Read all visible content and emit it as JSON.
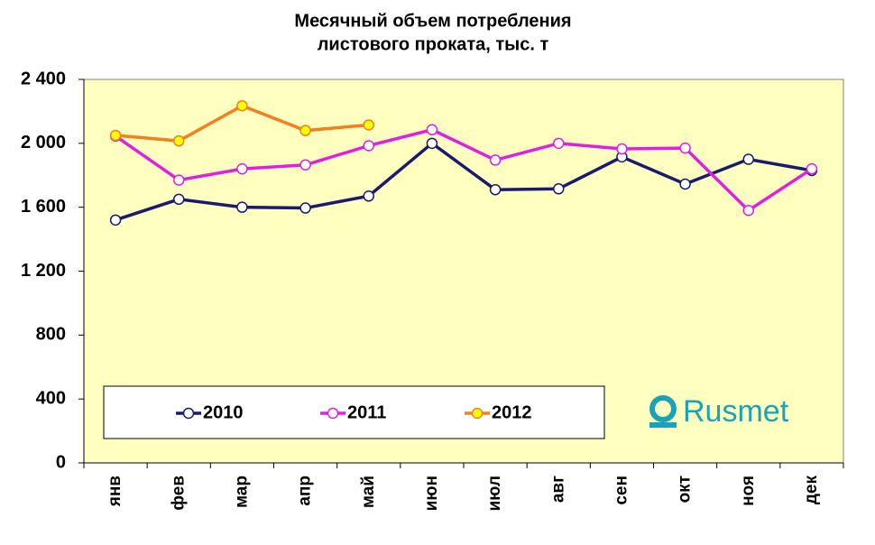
{
  "chart_data": {
    "type": "line",
    "title": [
      "Месячный объем потребления",
      "листового проката, тыс. т"
    ],
    "categories": [
      "янв",
      "фев",
      "мар",
      "апр",
      "май",
      "июн",
      "июл",
      "авг",
      "сен",
      "окт",
      "ноя",
      "дек"
    ],
    "series": [
      {
        "name": "2010",
        "color": "#1a1a6e",
        "marker_fill": "#ffffff",
        "values": [
          1520,
          1650,
          1600,
          1595,
          1670,
          2000,
          1710,
          1715,
          1915,
          1745,
          1900,
          1830
        ]
      },
      {
        "name": "2011",
        "color": "#e020e0",
        "marker_fill": "#ffffff",
        "values": [
          2045,
          1770,
          1840,
          1865,
          1985,
          2085,
          1895,
          2000,
          1965,
          1970,
          1580,
          1840
        ]
      },
      {
        "name": "2012",
        "color": "#f08020",
        "marker_fill": "#ffff00",
        "values": [
          2050,
          2015,
          2235,
          2080,
          2115,
          null,
          null,
          null,
          null,
          null,
          null,
          null
        ]
      }
    ],
    "ylim": [
      0,
      2400
    ],
    "yticks": [
      0,
      400,
      800,
      {
        "value": 1200,
        "label": "1 200"
      },
      {
        "value": 1600,
        "label": "1 600"
      },
      {
        "value": 2000,
        "label": "2 000"
      },
      {
        "value": 2400,
        "label": "2 400"
      }
    ],
    "grid": false,
    "legend": "bottom",
    "plot_background": "#ffffc0",
    "logo_text": "Rusmet"
  }
}
